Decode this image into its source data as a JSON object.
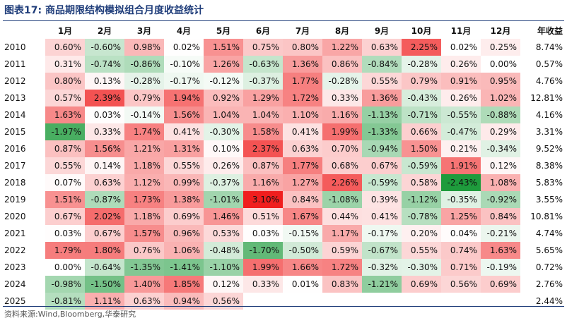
{
  "title": "图表17:   商品期限结构模拟组合月度收益统计",
  "source": "资料来源:Wind,Bloomberg,华泰研究",
  "colors": {
    "positive": "#f01e1e",
    "negative": "#1e9b3c",
    "neutral": "#ffffff",
    "rule": "#1f3d7a"
  },
  "chart_data": {
    "type": "heatmap",
    "title": "商品期限结构模拟组合月度收益统计",
    "columns": [
      "1月",
      "2月",
      "3月",
      "4月",
      "5月",
      "6月",
      "7月",
      "8月",
      "9月",
      "10月",
      "11月",
      "12月"
    ],
    "annual_header": "年收益",
    "years": [
      "2010",
      "2011",
      "2012",
      "2013",
      "2014",
      "2015",
      "2016",
      "2017",
      "2018",
      "2019",
      "2020",
      "2021",
      "2022",
      "2023",
      "2024",
      "2025"
    ],
    "values": [
      [
        "0.60%",
        "-0.60%",
        "0.98%",
        "0.02%",
        "1.51%",
        "0.75%",
        "0.80%",
        "1.22%",
        "0.63%",
        "2.25%",
        "0.02%",
        "0.25%"
      ],
      [
        "0.31%",
        "-0.74%",
        "-0.86%",
        "-0.10%",
        "1.26%",
        "-0.63%",
        "1.36%",
        "0.86%",
        "-0.84%",
        "-0.28%",
        "0.26%",
        "0.00%"
      ],
      [
        "0.80%",
        "0.13%",
        "-0.28%",
        "-0.17%",
        "-0.12%",
        "-0.37%",
        "1.77%",
        "-0.28%",
        "0.55%",
        "0.79%",
        "0.91%",
        "0.95%"
      ],
      [
        "0.57%",
        "2.39%",
        "0.79%",
        "1.94%",
        "0.92%",
        "1.29%",
        "1.72%",
        "0.33%",
        "1.36%",
        "-0.43%",
        "0.26%",
        "1.02%"
      ],
      [
        "1.63%",
        "0.03%",
        "-0.14%",
        "1.56%",
        "1.04%",
        "1.04%",
        "1.10%",
        "1.16%",
        "-1.13%",
        "-0.71%",
        "-0.55%",
        "-0.88%"
      ],
      [
        "-1.97%",
        "0.33%",
        "1.74%",
        "0.41%",
        "-0.30%",
        "1.58%",
        "0.41%",
        "1.99%",
        "-1.33%",
        "0.66%",
        "-0.47%",
        "0.29%"
      ],
      [
        "0.87%",
        "1.56%",
        "1.21%",
        "1.31%",
        "0.10%",
        "2.37%",
        "0.63%",
        "0.70%",
        "-0.94%",
        "1.50%",
        "0.21%",
        "-0.34%"
      ],
      [
        "0.55%",
        "0.14%",
        "1.18%",
        "0.55%",
        "0.26%",
        "0.87%",
        "1.77%",
        "0.68%",
        "0.67%",
        "-0.59%",
        "1.91%",
        "0.12%"
      ],
      [
        "0.07%",
        "0.63%",
        "1.12%",
        "0.99%",
        "-0.37%",
        "1.16%",
        "1.27%",
        "2.26%",
        "-0.59%",
        "0.58%",
        "-2.43%",
        "1.08%"
      ],
      [
        "1.51%",
        "-0.87%",
        "1.73%",
        "1.38%",
        "-1.01%",
        "3.10%",
        "0.84%",
        "-1.08%",
        "0.39%",
        "-1.12%",
        "-0.35%",
        "-0.92%"
      ],
      [
        "0.67%",
        "2.02%",
        "1.18%",
        "0.69%",
        "1.46%",
        "0.51%",
        "1.67%",
        "0.44%",
        "0.41%",
        "-0.78%",
        "1.25%",
        "0.84%"
      ],
      [
        "0.03%",
        "0.67%",
        "1.57%",
        "0.96%",
        "0.53%",
        "0.03%",
        "-0.15%",
        "1.17%",
        "-0.17%",
        "0.20%",
        "0.04%",
        "-0.21%"
      ],
      [
        "1.79%",
        "1.80%",
        "0.76%",
        "1.06%",
        "-0.48%",
        "-1.70%",
        "-0.50%",
        "0.59%",
        "-0.67%",
        "0.55%",
        "0.74%",
        "1.63%"
      ],
      [
        "0.00%",
        "-0.64%",
        "-1.35%",
        "-1.41%",
        "-1.10%",
        "1.99%",
        "1.66%",
        "1.72%",
        "-0.32%",
        "-0.30%",
        "0.71%",
        "-0.19%"
      ],
      [
        "-0.98%",
        "-1.50%",
        "1.40%",
        "1.85%",
        "0.12%",
        "0.33%",
        "0.01%",
        "0.83%",
        "-1.21%",
        "0.69%",
        "0.56%",
        "0.69%"
      ],
      [
        "-0.81%",
        "1.11%",
        "0.63%",
        "0.94%",
        "0.56%",
        "",
        "",
        "",
        "",
        "",
        "",
        ""
      ]
    ],
    "annual": [
      "8.74%",
      "0.57%",
      "4.76%",
      "12.81%",
      "4.16%",
      "3.31%",
      "9.52%",
      "8.38%",
      "5.83%",
      "3.55%",
      "10.81%",
      "4.74%",
      "5.65%",
      "0.72%",
      "2.76%",
      "2.44%"
    ],
    "color_scale": {
      "min": -2.43,
      "max": 3.1,
      "midpoint": 0
    }
  }
}
